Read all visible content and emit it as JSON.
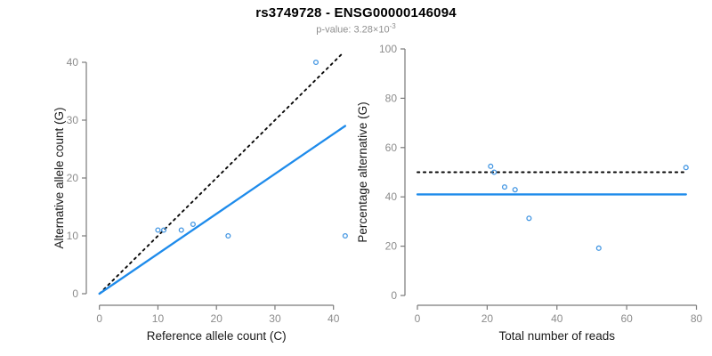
{
  "header": {
    "title": "rs3749728 - ENSG00000146094",
    "subtitle_base": "p-value: 3.28×10",
    "subtitle_exponent": "-3"
  },
  "colors": {
    "line_blue": "#1e8beb",
    "point_blue": "#4497e3",
    "dotted_black": "#0a0a0a",
    "axis_gray": "#7a7a7a",
    "tick_label_gray": "#8c8c8c",
    "axis_title_dark": "#1a1a1a",
    "subtitle_gray": "#8f8f8f"
  },
  "chart_data": [
    {
      "name": "allele-counts",
      "type": "scatter",
      "xlabel": "Reference allele count (C)",
      "ylabel": "Alternative allele count (G)",
      "xlim": [
        0,
        42
      ],
      "ylim": [
        0,
        42
      ],
      "xticks": [
        0,
        10,
        20,
        30,
        40
      ],
      "yticks": [
        0,
        10,
        20,
        30,
        40
      ],
      "points": [
        [
          10,
          11
        ],
        [
          11,
          11
        ],
        [
          14,
          11
        ],
        [
          16,
          12
        ],
        [
          22,
          10
        ],
        [
          37,
          40
        ],
        [
          42,
          10
        ]
      ],
      "lines": [
        {
          "name": "identity",
          "style": "dotted",
          "from": [
            0,
            0
          ],
          "to": [
            41.5,
            41.5
          ]
        },
        {
          "name": "fit",
          "style": "solid",
          "from": [
            0,
            0
          ],
          "to": [
            42,
            29
          ]
        }
      ]
    },
    {
      "name": "percentage-vs-reads",
      "type": "scatter",
      "xlabel": "Total number of reads",
      "ylabel": "Percentage alternative (G)",
      "xlim": [
        0,
        80
      ],
      "ylim": [
        0,
        100
      ],
      "xticks": [
        0,
        20,
        40,
        60,
        80
      ],
      "yticks": [
        0,
        20,
        40,
        60,
        80,
        100
      ],
      "points": [
        [
          21,
          52.4
        ],
        [
          22,
          50
        ],
        [
          25,
          44
        ],
        [
          28,
          42.9
        ],
        [
          32,
          31.3
        ],
        [
          52,
          19.2
        ],
        [
          77,
          51.9
        ]
      ],
      "lines": [
        {
          "name": "expected-50pct",
          "style": "dotted",
          "from": [
            0,
            50
          ],
          "to": [
            77,
            50
          ]
        },
        {
          "name": "observed-mean-41pct",
          "style": "solid",
          "from": [
            0,
            41
          ],
          "to": [
            77,
            41
          ]
        }
      ]
    }
  ]
}
